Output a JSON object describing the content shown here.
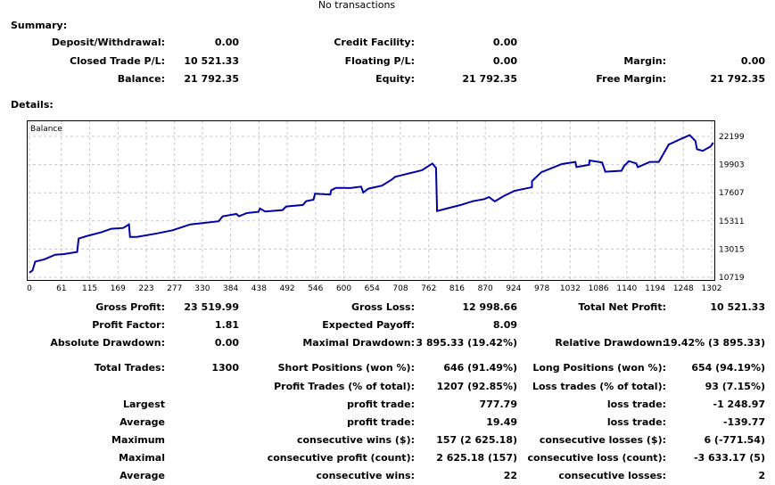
{
  "header": {
    "no_transactions": "No transactions"
  },
  "summary": {
    "title": "Summary:",
    "rows": [
      [
        "Deposit/Withdrawal:",
        "0.00",
        "Credit Facility:",
        "0.00",
        "",
        ""
      ],
      [
        "Closed Trade P/L:",
        "10 521.33",
        "Floating P/L:",
        "0.00",
        "Margin:",
        "0.00"
      ],
      [
        "Balance:",
        "21 792.35",
        "Equity:",
        "21 792.35",
        "Free Margin:",
        "21 792.35"
      ]
    ]
  },
  "details": {
    "title": "Details:",
    "rows": [
      [
        "Gross Profit:",
        "23 519.99",
        "Gross Loss:",
        "12 998.66",
        "Total Net Profit:",
        "10 521.33"
      ],
      [
        "Profit Factor:",
        "1.81",
        "Expected Payoff:",
        "8.09",
        "",
        ""
      ],
      [
        "Absolute Drawdown:",
        "0.00",
        "Maximal Drawdown:",
        "3 895.33 (19.42%)",
        "Relative Drawdown:",
        "19.42% (3 895.33)"
      ],
      [
        "Total Trades:",
        "1300",
        "Short Positions (won %):",
        "646 (91.49%)",
        "Long Positions (won %):",
        "654 (94.19%)"
      ],
      [
        "",
        "",
        "Profit Trades (% of total):",
        "1207 (92.85%)",
        "Loss trades (% of total):",
        "93 (7.15%)"
      ],
      [
        "Largest",
        "",
        "profit trade:",
        "777.79",
        "loss trade:",
        "-1 248.97"
      ],
      [
        "Average",
        "",
        "profit trade:",
        "19.49",
        "loss trade:",
        "-139.77"
      ],
      [
        "Maximum",
        "",
        "consecutive wins ($):",
        "157 (2 625.18)",
        "consecutive losses ($):",
        "6 (-771.54)"
      ],
      [
        "Maximal",
        "",
        "consecutive profit (count):",
        "2 625.18 (157)",
        "consecutive loss (count):",
        "-3 633.17 (5)"
      ],
      [
        "Average",
        "",
        "consecutive wins:",
        "22",
        "consecutive losses:",
        "2"
      ]
    ]
  },
  "chart_data": {
    "type": "line",
    "legend": "Balance",
    "line_color": "#0000AA",
    "grid": true,
    "xlim": [
      0,
      1305
    ],
    "ylim": [
      10719,
      22199
    ],
    "x_ticks": [
      "0",
      "61",
      "115",
      "169",
      "223",
      "277",
      "330",
      "384",
      "438",
      "492",
      "546",
      "600",
      "654",
      "708",
      "762",
      "816",
      "870",
      "924",
      "978",
      "1032",
      "1086",
      "1140",
      "1194",
      "1248",
      "1302"
    ],
    "y_ticks": [
      "22199",
      "19903",
      "17607",
      "15311",
      "13015",
      "10719"
    ],
    "series": [
      {
        "name": "Balance",
        "points": [
          [
            0,
            11100
          ],
          [
            6,
            11280
          ],
          [
            11,
            12000
          ],
          [
            29,
            12190
          ],
          [
            49,
            12560
          ],
          [
            66,
            12610
          ],
          [
            91,
            12780
          ],
          [
            94,
            13870
          ],
          [
            108,
            14060
          ],
          [
            137,
            14380
          ],
          [
            156,
            14670
          ],
          [
            179,
            14740
          ],
          [
            190,
            15030
          ],
          [
            192,
            14010
          ],
          [
            205,
            14010
          ],
          [
            239,
            14260
          ],
          [
            273,
            14550
          ],
          [
            307,
            15030
          ],
          [
            361,
            15280
          ],
          [
            369,
            15690
          ],
          [
            395,
            15880
          ],
          [
            400,
            15690
          ],
          [
            415,
            15950
          ],
          [
            437,
            16050
          ],
          [
            440,
            16320
          ],
          [
            450,
            16080
          ],
          [
            483,
            16200
          ],
          [
            490,
            16490
          ],
          [
            522,
            16610
          ],
          [
            528,
            16920
          ],
          [
            542,
            17040
          ],
          [
            545,
            17530
          ],
          [
            574,
            17460
          ],
          [
            576,
            17820
          ],
          [
            585,
            18010
          ],
          [
            613,
            17990
          ],
          [
            633,
            18110
          ],
          [
            637,
            17630
          ],
          [
            647,
            17940
          ],
          [
            673,
            18190
          ],
          [
            692,
            18700
          ],
          [
            698,
            18910
          ],
          [
            749,
            19440
          ],
          [
            769,
            19990
          ],
          [
            776,
            19630
          ],
          [
            778,
            16120
          ],
          [
            789,
            16240
          ],
          [
            823,
            16610
          ],
          [
            846,
            16920
          ],
          [
            869,
            17100
          ],
          [
            877,
            17260
          ],
          [
            888,
            16900
          ],
          [
            905,
            17330
          ],
          [
            925,
            17750
          ],
          [
            959,
            18060
          ],
          [
            959,
            18550
          ],
          [
            977,
            19280
          ],
          [
            1016,
            19950
          ],
          [
            1042,
            20120
          ],
          [
            1044,
            19710
          ],
          [
            1068,
            19880
          ],
          [
            1069,
            20240
          ],
          [
            1093,
            20070
          ],
          [
            1099,
            19320
          ],
          [
            1130,
            19400
          ],
          [
            1135,
            19800
          ],
          [
            1144,
            20190
          ],
          [
            1158,
            20000
          ],
          [
            1161,
            19690
          ],
          [
            1184,
            20120
          ],
          [
            1201,
            20120
          ],
          [
            1220,
            21530
          ],
          [
            1243,
            21990
          ],
          [
            1260,
            22300
          ],
          [
            1271,
            21820
          ],
          [
            1274,
            21160
          ],
          [
            1285,
            21020
          ],
          [
            1300,
            21380
          ],
          [
            1305,
            21690
          ]
        ]
      }
    ]
  }
}
